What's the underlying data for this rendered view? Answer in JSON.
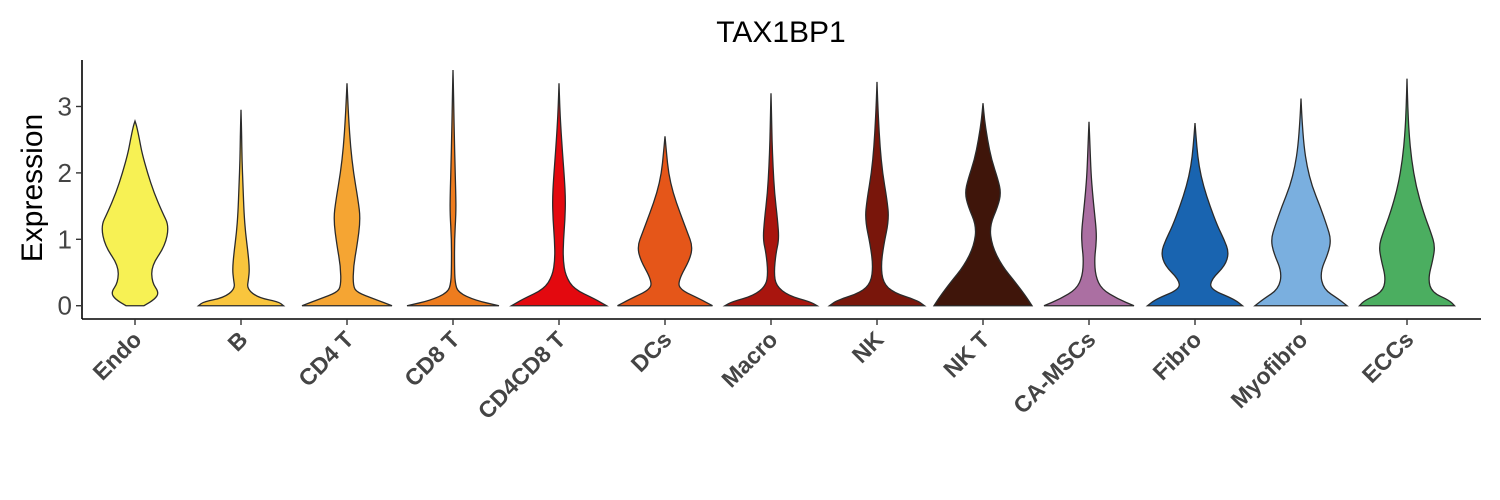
{
  "chart_data": {
    "type": "violin",
    "title": "TAX1BP1",
    "ylabel": "Expression",
    "xlabel": "",
    "ylim": [
      -0.2,
      3.7
    ],
    "yticks": [
      0,
      1,
      2,
      3
    ],
    "grid": false,
    "legend": "none",
    "categories": [
      "Endo",
      "B",
      "CD4 T",
      "CD8 T",
      "CD4CD8 T",
      "DCs",
      "Macro",
      "NK",
      "NK T",
      "CA-MSCs",
      "Fibro",
      "Myofibro",
      "ECCs"
    ],
    "colors": [
      "#F7F154",
      "#F9C53D",
      "#F5A533",
      "#EE7C1E",
      "#E3090F",
      "#E55619",
      "#A9150E",
      "#79160B",
      "#3F150A",
      "#AB6FA2",
      "#1964B0",
      "#7AAFDF",
      "#4BAE60"
    ],
    "violins": [
      {
        "max": 2.78,
        "density": [
          [
            0,
            0.18
          ],
          [
            0.1,
            0.4
          ],
          [
            0.2,
            0.48
          ],
          [
            0.35,
            0.34
          ],
          [
            0.6,
            0.33
          ],
          [
            0.9,
            0.6
          ],
          [
            1.2,
            0.68
          ],
          [
            1.4,
            0.55
          ],
          [
            1.7,
            0.38
          ],
          [
            2.0,
            0.25
          ],
          [
            2.3,
            0.14
          ],
          [
            2.5,
            0.09
          ],
          [
            2.7,
            0.035
          ],
          [
            2.78,
            0
          ]
        ]
      },
      {
        "max": 2.95,
        "density": [
          [
            0,
            0.85
          ],
          [
            0.06,
            0.75
          ],
          [
            0.12,
            0.35
          ],
          [
            0.25,
            0.12
          ],
          [
            0.4,
            0.15
          ],
          [
            0.55,
            0.17
          ],
          [
            0.8,
            0.14
          ],
          [
            1.1,
            0.09
          ],
          [
            1.4,
            0.06
          ],
          [
            1.8,
            0.04
          ],
          [
            2.2,
            0.02
          ],
          [
            2.6,
            0.012
          ],
          [
            2.95,
            0
          ]
        ]
      },
      {
        "max": 3.35,
        "density": [
          [
            0,
            0.9
          ],
          [
            0.1,
            0.55
          ],
          [
            0.2,
            0.2
          ],
          [
            0.3,
            0.12
          ],
          [
            0.6,
            0.13
          ],
          [
            0.9,
            0.2
          ],
          [
            1.3,
            0.27
          ],
          [
            1.6,
            0.22
          ],
          [
            2.0,
            0.13
          ],
          [
            2.4,
            0.07
          ],
          [
            2.8,
            0.035
          ],
          [
            3.1,
            0.015
          ],
          [
            3.35,
            0
          ]
        ]
      },
      {
        "max": 3.55,
        "density": [
          [
            0,
            0.92
          ],
          [
            0.08,
            0.45
          ],
          [
            0.2,
            0.1
          ],
          [
            0.35,
            0.04
          ],
          [
            0.6,
            0.03
          ],
          [
            1.0,
            0.03
          ],
          [
            1.4,
            0.06
          ],
          [
            1.7,
            0.055
          ],
          [
            2.1,
            0.04
          ],
          [
            2.6,
            0.025
          ],
          [
            3.0,
            0.015
          ],
          [
            3.3,
            0.008
          ],
          [
            3.55,
            0
          ]
        ]
      },
      {
        "max": 3.35,
        "density": [
          [
            0,
            0.95
          ],
          [
            0.1,
            0.72
          ],
          [
            0.25,
            0.3
          ],
          [
            0.45,
            0.13
          ],
          [
            0.7,
            0.08
          ],
          [
            1.0,
            0.09
          ],
          [
            1.3,
            0.12
          ],
          [
            1.6,
            0.13
          ],
          [
            1.9,
            0.11
          ],
          [
            2.3,
            0.07
          ],
          [
            2.7,
            0.035
          ],
          [
            3.0,
            0.015
          ],
          [
            3.35,
            0
          ]
        ]
      },
      {
        "max": 2.55,
        "density": [
          [
            0,
            0.95
          ],
          [
            0.1,
            0.7
          ],
          [
            0.25,
            0.28
          ],
          [
            0.4,
            0.28
          ],
          [
            0.7,
            0.5
          ],
          [
            0.9,
            0.55
          ],
          [
            1.1,
            0.45
          ],
          [
            1.4,
            0.3
          ],
          [
            1.7,
            0.16
          ],
          [
            2.0,
            0.07
          ],
          [
            2.3,
            0.03
          ],
          [
            2.55,
            0
          ]
        ]
      },
      {
        "max": 3.2,
        "density": [
          [
            0,
            0.92
          ],
          [
            0.06,
            0.78
          ],
          [
            0.15,
            0.35
          ],
          [
            0.3,
            0.1
          ],
          [
            0.5,
            0.06
          ],
          [
            0.8,
            0.1
          ],
          [
            1.0,
            0.16
          ],
          [
            1.3,
            0.13
          ],
          [
            1.7,
            0.07
          ],
          [
            2.1,
            0.04
          ],
          [
            2.5,
            0.02
          ],
          [
            2.9,
            0.01
          ],
          [
            3.2,
            0
          ]
        ]
      },
      {
        "max": 3.37,
        "density": [
          [
            0,
            0.95
          ],
          [
            0.08,
            0.8
          ],
          [
            0.2,
            0.32
          ],
          [
            0.35,
            0.12
          ],
          [
            0.6,
            0.08
          ],
          [
            0.9,
            0.13
          ],
          [
            1.3,
            0.24
          ],
          [
            1.6,
            0.2
          ],
          [
            2.0,
            0.11
          ],
          [
            2.4,
            0.06
          ],
          [
            2.8,
            0.03
          ],
          [
            3.1,
            0.012
          ],
          [
            3.37,
            0
          ]
        ]
      },
      {
        "max": 3.05,
        "density": [
          [
            0,
            0.98
          ],
          [
            0.15,
            0.85
          ],
          [
            0.35,
            0.65
          ],
          [
            0.6,
            0.38
          ],
          [
            0.9,
            0.18
          ],
          [
            1.2,
            0.13
          ],
          [
            1.5,
            0.3
          ],
          [
            1.7,
            0.36
          ],
          [
            1.9,
            0.3
          ],
          [
            2.2,
            0.17
          ],
          [
            2.5,
            0.09
          ],
          [
            2.8,
            0.03
          ],
          [
            3.05,
            0
          ]
        ]
      },
      {
        "max": 2.77,
        "density": [
          [
            0,
            0.9
          ],
          [
            0.1,
            0.58
          ],
          [
            0.25,
            0.25
          ],
          [
            0.45,
            0.13
          ],
          [
            0.7,
            0.11
          ],
          [
            0.9,
            0.14
          ],
          [
            1.1,
            0.15
          ],
          [
            1.4,
            0.11
          ],
          [
            1.7,
            0.07
          ],
          [
            2.0,
            0.04
          ],
          [
            2.4,
            0.02
          ],
          [
            2.77,
            0
          ]
        ]
      },
      {
        "max": 2.75,
        "density": [
          [
            0,
            0.95
          ],
          [
            0.1,
            0.78
          ],
          [
            0.25,
            0.3
          ],
          [
            0.4,
            0.33
          ],
          [
            0.6,
            0.6
          ],
          [
            0.8,
            0.68
          ],
          [
            1.0,
            0.58
          ],
          [
            1.2,
            0.45
          ],
          [
            1.5,
            0.3
          ],
          [
            1.8,
            0.17
          ],
          [
            2.1,
            0.08
          ],
          [
            2.4,
            0.035
          ],
          [
            2.75,
            0
          ]
        ]
      },
      {
        "max": 3.12,
        "density": [
          [
            0,
            0.92
          ],
          [
            0.1,
            0.75
          ],
          [
            0.25,
            0.45
          ],
          [
            0.5,
            0.38
          ],
          [
            0.8,
            0.55
          ],
          [
            1.0,
            0.6
          ],
          [
            1.2,
            0.52
          ],
          [
            1.5,
            0.38
          ],
          [
            1.8,
            0.22
          ],
          [
            2.1,
            0.12
          ],
          [
            2.4,
            0.06
          ],
          [
            2.8,
            0.02
          ],
          [
            3.12,
            0
          ]
        ]
      },
      {
        "max": 3.42,
        "density": [
          [
            0,
            0.95
          ],
          [
            0.08,
            0.85
          ],
          [
            0.2,
            0.5
          ],
          [
            0.4,
            0.42
          ],
          [
            0.7,
            0.52
          ],
          [
            0.9,
            0.56
          ],
          [
            1.1,
            0.48
          ],
          [
            1.4,
            0.33
          ],
          [
            1.8,
            0.18
          ],
          [
            2.2,
            0.09
          ],
          [
            2.6,
            0.04
          ],
          [
            3.0,
            0.015
          ],
          [
            3.42,
            0
          ]
        ]
      }
    ]
  }
}
